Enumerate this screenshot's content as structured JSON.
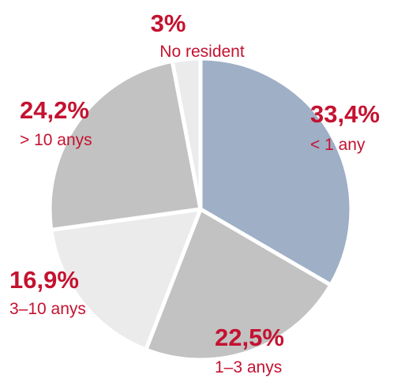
{
  "chart_data": {
    "type": "pie",
    "categories": [
      "< 1 any",
      "1–3 anys",
      "3–10 anys",
      "> 10 anys",
      "No resident"
    ],
    "values": [
      33.4,
      22.5,
      16.9,
      24.2,
      3
    ],
    "value_labels": [
      "33,4%",
      "22,5%",
      "16,9%",
      "24,2%",
      "3%"
    ],
    "colors": [
      "#9eafc6",
      "#c2c2c2",
      "#ebebeb",
      "#c2c2c2",
      "#ebebeb"
    ]
  }
}
